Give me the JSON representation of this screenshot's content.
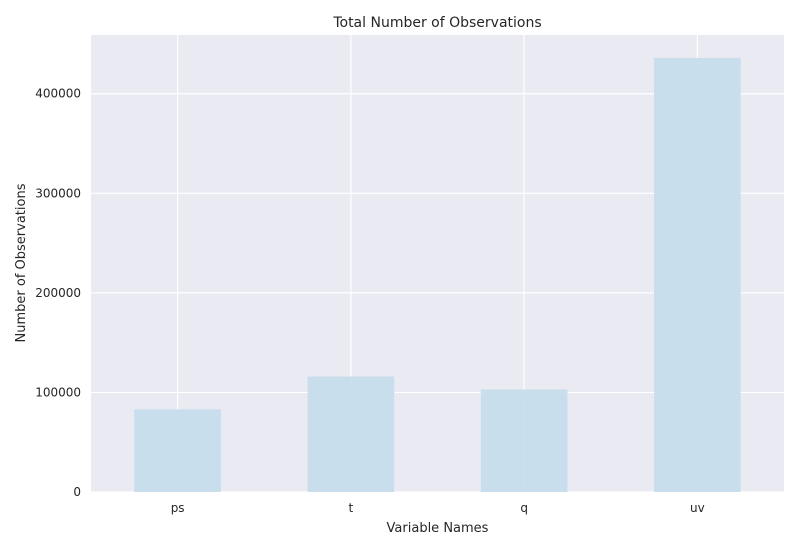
{
  "chart_data": {
    "type": "bar",
    "title": "Total Number of Observations",
    "xlabel": "Variable Names",
    "ylabel": "Number of Observations",
    "categories": [
      "ps",
      "t",
      "q",
      "uv"
    ],
    "values": [
      83000,
      116000,
      103000,
      436000
    ],
    "ylim": [
      0,
      459000
    ],
    "yticks": [
      0,
      100000,
      200000,
      300000,
      400000
    ],
    "ytick_labels": [
      "0",
      "100000",
      "200000",
      "300000",
      "400000"
    ],
    "grid": true,
    "legend": "none",
    "colors": {
      "bar": "#c6dcec",
      "plot_background": "#eaeaf2",
      "grid": "#ffffff"
    }
  }
}
